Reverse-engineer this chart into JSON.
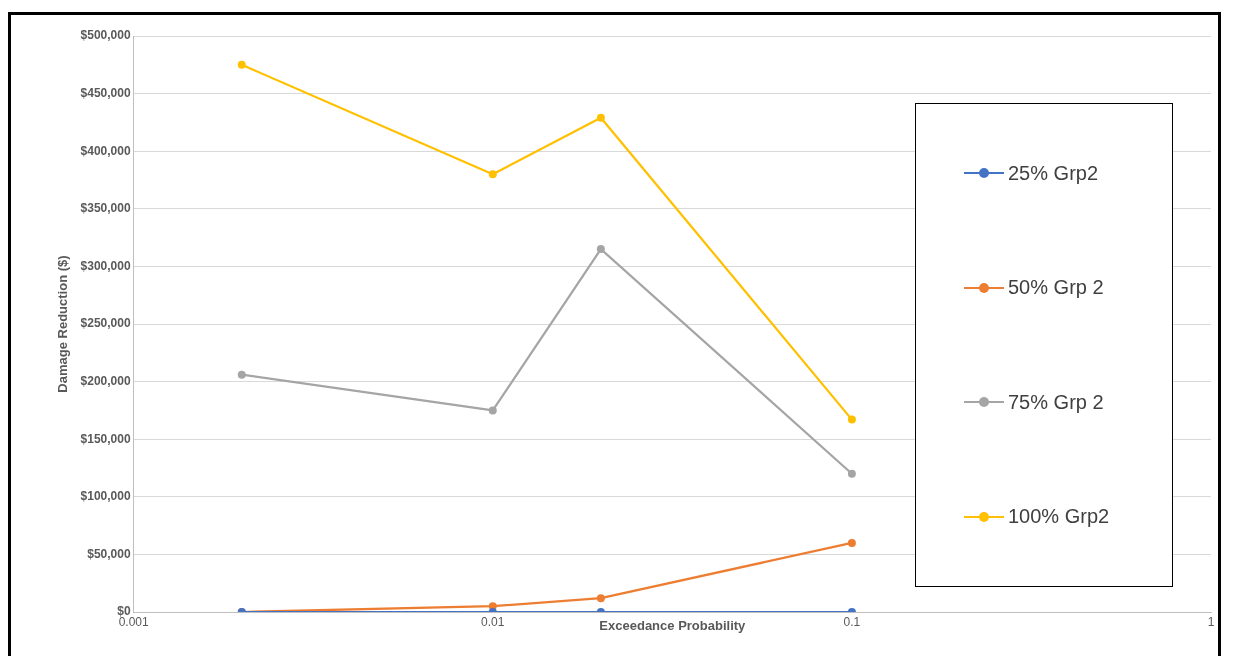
{
  "chart_data": {
    "type": "line",
    "xlabel": "Exceedance Probability",
    "ylabel": "Damage Reduction ($)",
    "x": [
      0.002,
      0.01,
      0.02,
      0.1
    ],
    "series": [
      {
        "name": "25% Grp2",
        "color": "#4472c4",
        "values": [
          0,
          0,
          0,
          0
        ]
      },
      {
        "name": "50% Grp 2",
        "color": "#ed7d31",
        "values": [
          0,
          5000,
          12000,
          60000
        ]
      },
      {
        "name": "75% Grp 2",
        "color": "#a5a5a5",
        "values": [
          206000,
          175000,
          315000,
          120000
        ]
      },
      {
        "name": "100% Grp2",
        "color": "#ffc000",
        "values": [
          475000,
          380000,
          429000,
          167000
        ]
      }
    ],
    "log": "x",
    "xlim": [
      0.001,
      1
    ],
    "xticks": [
      0.001,
      0.01,
      0.1,
      1
    ],
    "ylim": [
      0,
      500000
    ],
    "yticks": [
      {
        "value": 0,
        "label": "$0"
      },
      {
        "value": 50000,
        "label": "$50,000"
      },
      {
        "value": 100000,
        "label": "$100,000"
      },
      {
        "value": 150000,
        "label": "$150,000"
      },
      {
        "value": 200000,
        "label": "$200,000"
      },
      {
        "value": 250000,
        "label": "$250,000"
      },
      {
        "value": 300000,
        "label": "$300,000"
      },
      {
        "value": 350000,
        "label": "$350,000"
      },
      {
        "value": 400000,
        "label": "$400,000"
      },
      {
        "value": 450000,
        "label": "$450,000"
      },
      {
        "value": 500000,
        "label": "$500,000"
      }
    ],
    "grid": "y",
    "legend": "right",
    "marker": "circle",
    "line_style": "solid"
  }
}
